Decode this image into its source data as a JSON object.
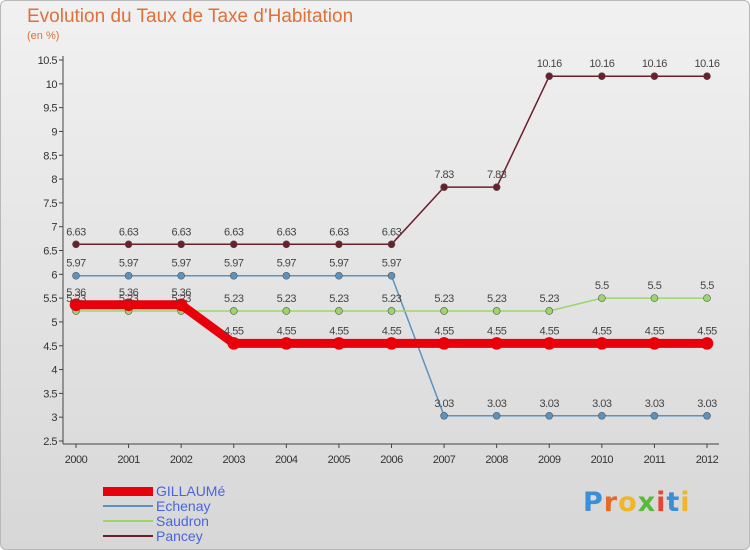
{
  "header": {
    "title": "Evolution du Taux de Taxe d'Habitation",
    "subtitle": "(en %)"
  },
  "brand": {
    "letters": [
      "P",
      "r",
      "o",
      "x",
      "i",
      "t",
      "i"
    ]
  },
  "chart_data": {
    "type": "line",
    "x": [
      "2000",
      "2001",
      "2002",
      "2003",
      "2004",
      "2005",
      "2006",
      "2007",
      "2008",
      "2009",
      "2010",
      "2011",
      "2012"
    ],
    "ylim": [
      2.5,
      10.5
    ],
    "yticks": [
      "2.5",
      "3",
      "3.5",
      "4",
      "4.5",
      "5",
      "5.5",
      "6",
      "6.5",
      "7",
      "7.5",
      "8",
      "8.5",
      "9",
      "9.5",
      "10",
      "10.5"
    ],
    "grid": false,
    "legend_position": "bottom-left",
    "series": [
      {
        "name": "Pancey",
        "color": "#6b1f2a",
        "width": 1.5,
        "marker": 3.5,
        "values": [
          6.63,
          6.63,
          6.63,
          6.63,
          6.63,
          6.63,
          6.63,
          7.83,
          7.83,
          10.16,
          10.16,
          10.16,
          10.16
        ],
        "labels": [
          "6.63",
          "6.63",
          "6.63",
          "6.63",
          "6.63",
          "6.63",
          "6.63",
          "7.83",
          "7.83",
          "10.16",
          "10.16",
          "10.16",
          "10.16"
        ]
      },
      {
        "name": "Echenay",
        "color": "#5b93c0",
        "width": 1.5,
        "marker": 3.5,
        "values": [
          5.97,
          5.97,
          5.97,
          5.97,
          5.97,
          5.97,
          5.97,
          3.03,
          3.03,
          3.03,
          3.03,
          3.03,
          3.03
        ],
        "labels": [
          "5.97",
          "5.97",
          "5.97",
          "5.97",
          "5.97",
          "5.97",
          "5.97",
          "3.03",
          "3.03",
          "3.03",
          "3.03",
          "3.03",
          "3.03"
        ]
      },
      {
        "name": "Saudron",
        "color": "#9bd66b",
        "width": 1.5,
        "marker": 3.5,
        "values": [
          5.23,
          5.23,
          5.23,
          5.23,
          5.23,
          5.23,
          5.23,
          5.23,
          5.23,
          5.23,
          5.5,
          5.5,
          5.5
        ],
        "labels": [
          "5.23",
          "5.23",
          "5.23",
          "5.23",
          "5.23",
          "5.23",
          "5.23",
          "5.23",
          "5.23",
          "5.23",
          "5.5",
          "5.5",
          "5.5"
        ]
      },
      {
        "name": "GILLAUMé",
        "color": "#e8000a",
        "width": 9,
        "marker": 6,
        "values": [
          5.36,
          5.36,
          5.36,
          4.55,
          4.55,
          4.55,
          4.55,
          4.55,
          4.55,
          4.55,
          4.55,
          4.55,
          4.55
        ],
        "labels": [
          "5.36",
          "5.36",
          "5.36",
          "4.55",
          "4.55",
          "4.55",
          "4.55",
          "4.55",
          "4.55",
          "4.55",
          "4.55",
          "4.55",
          "4.55"
        ]
      }
    ],
    "legend": [
      {
        "name": "GILLAUMé",
        "color": "#e8000a"
      },
      {
        "name": "Echenay",
        "color": "#5b93c0"
      },
      {
        "name": "Saudron",
        "color": "#9bd66b"
      },
      {
        "name": "Pancey",
        "color": "#6b1f2a"
      }
    ]
  }
}
